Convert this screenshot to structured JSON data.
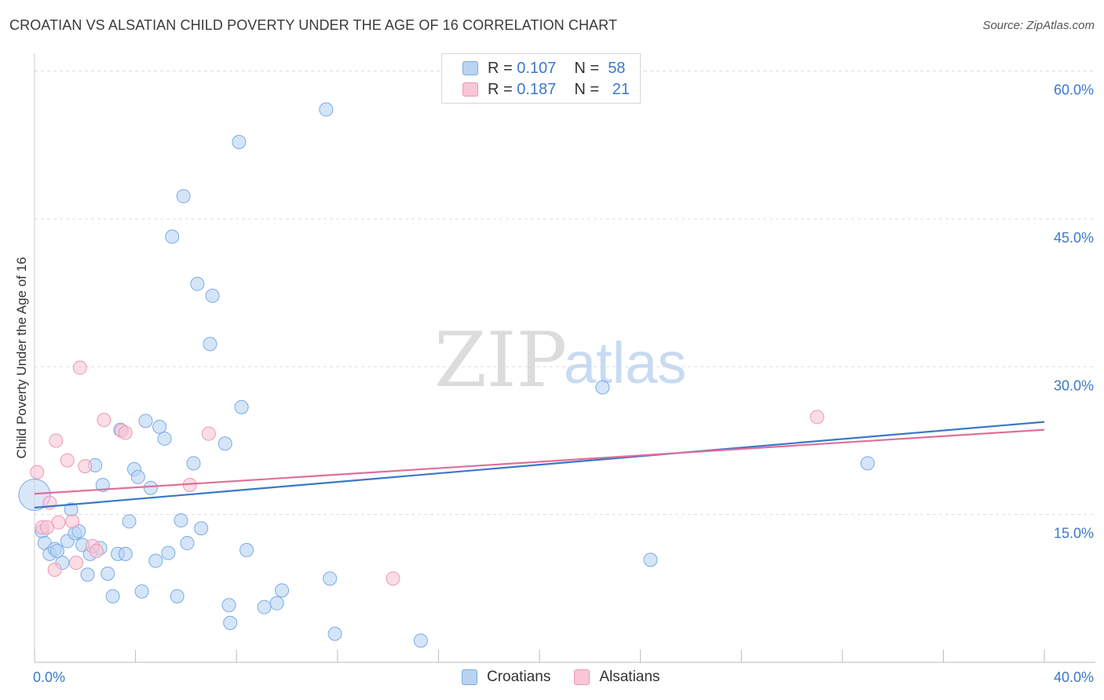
{
  "header": {
    "title": "CROATIAN VS ALSATIAN CHILD POVERTY UNDER THE AGE OF 16 CORRELATION CHART",
    "source": "Source: ZipAtlas.com"
  },
  "watermark": {
    "zip": "ZIP",
    "atlas": "atlas"
  },
  "legend": {
    "r_label": "R =",
    "n_label": "N =",
    "entries": [
      {
        "name": "Croatians",
        "r": "0.107",
        "n": "58",
        "fill": "#b9d3f3",
        "stroke": "#7aaae6"
      },
      {
        "name": "Alsatians",
        "r": "0.187",
        "n": "21",
        "fill": "#f9c6d6",
        "stroke": "#ee96b3"
      }
    ]
  },
  "chart_data": {
    "type": "scatter",
    "title": "CROATIAN VS ALSATIAN CHILD POVERTY UNDER THE AGE OF 16 CORRELATION CHART",
    "xlabel": "",
    "ylabel": "Child Poverty Under the Age of 16",
    "xlim": [
      0,
      40
    ],
    "ylim": [
      0,
      61
    ],
    "x_tick_labels": [
      "0.0%",
      "40.0%"
    ],
    "y_ticks": [
      15,
      30,
      45,
      60
    ],
    "y_tick_labels": [
      "15.0%",
      "30.0%",
      "45.0%",
      "60.0%"
    ],
    "grid": true,
    "legend_position": "top-center",
    "series": [
      {
        "name": "Croatians",
        "color": "#3a78c9",
        "fill": "#b9d3f3",
        "stroke": "#7aaae6",
        "trend": {
          "x": [
            0,
            40
          ],
          "y": [
            15.7,
            24.4
          ]
        },
        "points": [
          {
            "x": 0.0,
            "y": 17.0,
            "big": true
          },
          {
            "x": 0.3,
            "y": 13.3
          },
          {
            "x": 0.4,
            "y": 12.1
          },
          {
            "x": 0.6,
            "y": 11.0
          },
          {
            "x": 0.8,
            "y": 11.5
          },
          {
            "x": 0.9,
            "y": 11.3
          },
          {
            "x": 1.1,
            "y": 10.1
          },
          {
            "x": 1.3,
            "y": 12.3
          },
          {
            "x": 1.45,
            "y": 15.5
          },
          {
            "x": 1.6,
            "y": 13.1
          },
          {
            "x": 1.75,
            "y": 13.3
          },
          {
            "x": 1.9,
            "y": 11.9
          },
          {
            "x": 2.1,
            "y": 8.9
          },
          {
            "x": 2.2,
            "y": 11.0
          },
          {
            "x": 2.4,
            "y": 20.0
          },
          {
            "x": 2.6,
            "y": 11.6
          },
          {
            "x": 2.7,
            "y": 18.0
          },
          {
            "x": 2.9,
            "y": 9.0
          },
          {
            "x": 3.1,
            "y": 6.7
          },
          {
            "x": 3.3,
            "y": 11.0
          },
          {
            "x": 3.4,
            "y": 23.6
          },
          {
            "x": 3.6,
            "y": 11.0
          },
          {
            "x": 3.75,
            "y": 14.3
          },
          {
            "x": 3.95,
            "y": 19.6
          },
          {
            "x": 4.1,
            "y": 18.8
          },
          {
            "x": 4.25,
            "y": 7.2
          },
          {
            "x": 4.4,
            "y": 24.5
          },
          {
            "x": 4.6,
            "y": 17.7
          },
          {
            "x": 4.8,
            "y": 10.3
          },
          {
            "x": 4.95,
            "y": 23.9
          },
          {
            "x": 5.15,
            "y": 22.7
          },
          {
            "x": 5.3,
            "y": 11.1
          },
          {
            "x": 5.45,
            "y": 43.2
          },
          {
            "x": 5.65,
            "y": 6.7
          },
          {
            "x": 5.8,
            "y": 14.4
          },
          {
            "x": 5.9,
            "y": 47.3
          },
          {
            "x": 6.05,
            "y": 12.1
          },
          {
            "x": 6.3,
            "y": 20.2
          },
          {
            "x": 6.45,
            "y": 38.4
          },
          {
            "x": 6.6,
            "y": 13.6
          },
          {
            "x": 6.95,
            "y": 32.3
          },
          {
            "x": 7.05,
            "y": 37.2
          },
          {
            "x": 7.55,
            "y": 22.2
          },
          {
            "x": 7.7,
            "y": 5.8
          },
          {
            "x": 7.75,
            "y": 4.0
          },
          {
            "x": 8.1,
            "y": 52.8
          },
          {
            "x": 8.2,
            "y": 25.9
          },
          {
            "x": 8.4,
            "y": 11.4
          },
          {
            "x": 9.1,
            "y": 5.6
          },
          {
            "x": 9.6,
            "y": 6.0
          },
          {
            "x": 9.8,
            "y": 7.3
          },
          {
            "x": 11.55,
            "y": 56.1
          },
          {
            "x": 11.7,
            "y": 8.5
          },
          {
            "x": 11.9,
            "y": 2.9
          },
          {
            "x": 15.3,
            "y": 2.2
          },
          {
            "x": 22.5,
            "y": 27.9
          },
          {
            "x": 24.4,
            "y": 10.4
          },
          {
            "x": 33.0,
            "y": 20.2
          }
        ]
      },
      {
        "name": "Alsatians",
        "color": "#e06e9a",
        "fill": "#f9c6d6",
        "stroke": "#ee96b3",
        "trend": {
          "x": [
            0,
            40
          ],
          "y": [
            17.1,
            23.6
          ]
        },
        "points": [
          {
            "x": 0.1,
            "y": 19.3
          },
          {
            "x": 0.3,
            "y": 13.7
          },
          {
            "x": 0.5,
            "y": 13.7
          },
          {
            "x": 0.6,
            "y": 16.2
          },
          {
            "x": 0.8,
            "y": 9.4
          },
          {
            "x": 0.85,
            "y": 22.5
          },
          {
            "x": 0.95,
            "y": 14.2
          },
          {
            "x": 1.3,
            "y": 20.5
          },
          {
            "x": 1.5,
            "y": 14.3
          },
          {
            "x": 1.65,
            "y": 10.1
          },
          {
            "x": 1.8,
            "y": 29.9
          },
          {
            "x": 2.0,
            "y": 19.9
          },
          {
            "x": 2.3,
            "y": 11.8
          },
          {
            "x": 2.45,
            "y": 11.3
          },
          {
            "x": 2.75,
            "y": 24.6
          },
          {
            "x": 3.45,
            "y": 23.5
          },
          {
            "x": 3.6,
            "y": 23.3
          },
          {
            "x": 6.15,
            "y": 18.0
          },
          {
            "x": 6.9,
            "y": 23.2
          },
          {
            "x": 14.2,
            "y": 8.5
          },
          {
            "x": 31.0,
            "y": 24.9
          }
        ]
      }
    ]
  }
}
